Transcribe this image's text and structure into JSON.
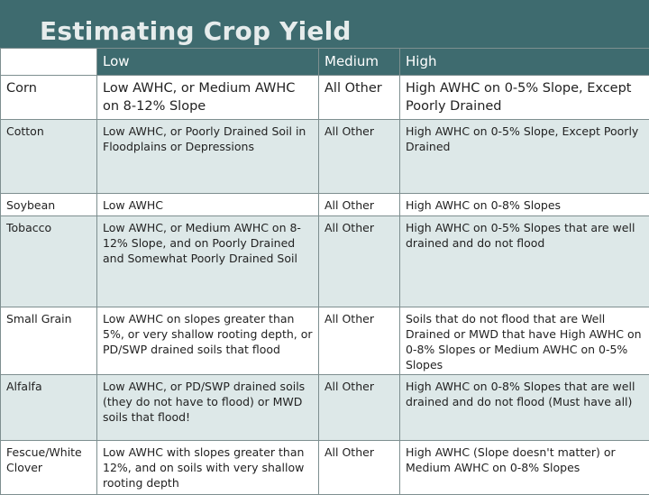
{
  "title": "Estimating Crop Yield",
  "headers": [
    "",
    "Low",
    "Medium",
    "High"
  ],
  "rows": [
    {
      "crop": "Corn",
      "low": "Low AWHC, or Medium AWHC on 8-12% Slope",
      "medium": "All Other",
      "high": "High AWHC on 0-5% Slope, Except Poorly Drained"
    },
    {
      "crop": "Cotton",
      "low": "Low AWHC, or Poorly Drained Soil in Floodplains or Depressions",
      "medium": "All Other",
      "high": "High AWHC on 0-5% Slope, Except Poorly Drained"
    },
    {
      "crop": "Soybean",
      "low": "Low AWHC",
      "medium": "All Other",
      "high": "High AWHC on 0-8% Slopes"
    },
    {
      "crop": "Tobacco",
      "low": "Low AWHC, or Medium AWHC on 8-12% Slope, and on Poorly Drained and Somewhat Poorly Drained Soil",
      "medium": "All Other",
      "high": "High AWHC on 0-5% Slopes that are well drained and do not flood"
    },
    {
      "crop": "Small Grain",
      "low": "Low AWHC on slopes greater than 5%, or very shallow rooting depth, or PD/SWP drained soils that flood",
      "medium": "All Other",
      "high": "Soils that do not flood that are Well Drained or MWD that have High AWHC on 0-8% Slopes or Medium AWHC on 0-5% Slopes"
    },
    {
      "crop": "Alfalfa",
      "low": "Low AWHC, or PD/SWP drained soils (they do not have to flood) or MWD soils that flood!",
      "medium": "All Other",
      "high": "High AWHC on 0-8% Slopes that are well drained and do not flood (Must have all)"
    },
    {
      "crop": "Fescue/White Clover",
      "low": "Low AWHC with slopes greater than 12%, and on soils with very shallow rooting depth",
      "medium": "All Other",
      "high": "High AWHC (Slope doesn't matter) or Medium AWHC on 0-8% Slopes"
    }
  ],
  "colors": {
    "header_bg": "#3e6b6f",
    "band_row": "#dde8e8",
    "border": "#7e8f90"
  }
}
